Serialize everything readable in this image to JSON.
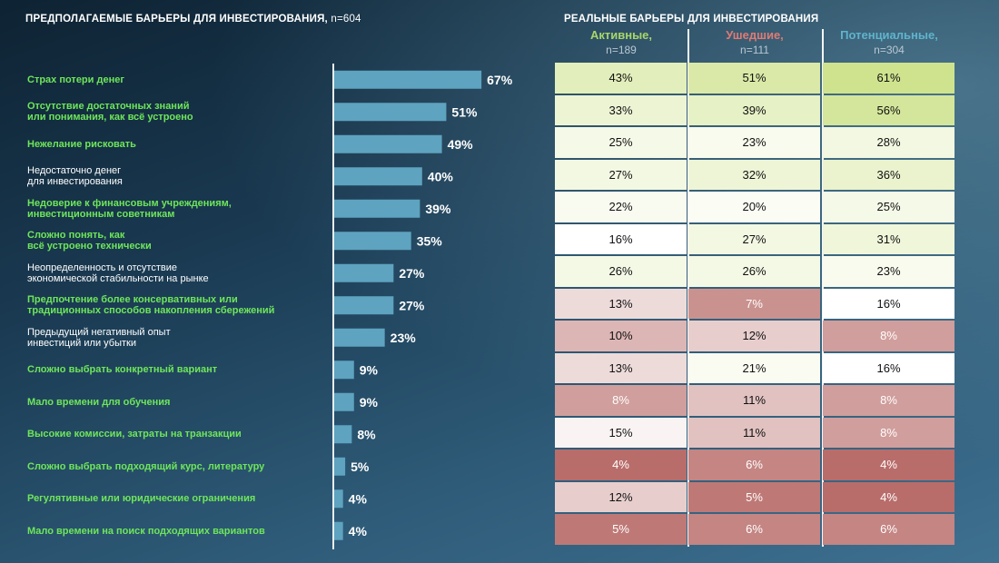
{
  "left_title": {
    "text": "ПРЕДПОЛАГАЕМЫЕ БАРЬЕРЫ ДЛЯ ИНВЕСТИРОВАНИЯ,",
    "n": " n=604"
  },
  "right_title": "РЕАЛЬНЫЕ БАРЬЕРЫ ДЛЯ ИНВЕСТИРОВАНИЯ",
  "columns": [
    {
      "name": "Активные,",
      "n": "n=189",
      "color": "#a8d66a"
    },
    {
      "name": "Ушедшие,",
      "n": "n=111",
      "color": "#e07a74"
    },
    {
      "name": "Потенциальные,",
      "n": "n=304",
      "color": "#5fb4cc"
    }
  ],
  "colors": {
    "bar": "#5ea3bf",
    "highlight_label": "#6ee65a",
    "low": "#b86d6a",
    "mid": "#ffffff",
    "high": "#cfe38e"
  },
  "rows": [
    {
      "label": "Страх потери денег",
      "highlight": true
    },
    {
      "label": "Отсутствие достаточных знаний\nили понимания, как всё устроено",
      "highlight": true
    },
    {
      "label": "Нежелание рисковать",
      "highlight": true
    },
    {
      "label": "Недостаточно денег\nдля инвестирования",
      "highlight": false
    },
    {
      "label": "Недоверие к финансовым учреждениям,\nинвестиционным советникам",
      "highlight": true
    },
    {
      "label": "Сложно понять, как\nвсё устроено технически",
      "highlight": true
    },
    {
      "label": "Неопределенность и отсутствие\nэкономической стабильности на рынке",
      "highlight": false
    },
    {
      "label": "Предпочтение более консервативных или\nтрадиционных способов накопления сбережений",
      "highlight": true
    },
    {
      "label": "Предыдущий негативный опыт\nинвестиций или убытки",
      "highlight": false
    },
    {
      "label": "Сложно выбрать конкретный вариант",
      "highlight": true
    },
    {
      "label": "Мало времени для обучения",
      "highlight": true
    },
    {
      "label": "Высокие комиссии, затраты на транзакции",
      "highlight": true
    },
    {
      "label": "Сложно выбрать подходящий курс, литературу",
      "highlight": true
    },
    {
      "label": "Регулятивные или юридические ограничения",
      "highlight": true
    },
    {
      "label": "Мало времени на поиск подходящих вариантов",
      "highlight": true
    }
  ],
  "chart_data": {
    "type": "bar",
    "orientation": "horizontal",
    "unit": "%",
    "categories": [
      "Страх потери денег",
      "Отсутствие достаточных знаний или понимания, как всё устроено",
      "Нежелание рисковать",
      "Недостаточно денег для инвестирования",
      "Недоверие к финансовым учреждениям, инвестиционным советникам",
      "Сложно понять, как всё устроено технически",
      "Неопределенность и отсутствие экономической стабильности на рынке",
      "Предпочтение более консервативных или традиционных способов накопления сбережений",
      "Предыдущий негативный опыт инвестиций или убытки",
      "Сложно выбрать конкретный вариант",
      "Мало времени для обучения",
      "Высокие комиссии, затраты на транзакции",
      "Сложно выбрать подходящий курс, литературу",
      "Регулятивные или юридические ограничения",
      "Мало времени на поиск подходящих вариантов"
    ],
    "values": [
      67,
      51,
      49,
      40,
      39,
      35,
      27,
      27,
      23,
      9,
      9,
      8,
      5,
      4,
      4
    ],
    "table": {
      "type": "table",
      "columns": [
        "Активные, n=189",
        "Ушедшие, n=111",
        "Потенциальные, n=304"
      ],
      "values": [
        [
          43,
          51,
          61
        ],
        [
          33,
          39,
          56
        ],
        [
          25,
          23,
          28
        ],
        [
          27,
          32,
          36
        ],
        [
          22,
          20,
          25
        ],
        [
          16,
          27,
          31
        ],
        [
          26,
          26,
          23
        ],
        [
          13,
          7,
          16
        ],
        [
          10,
          12,
          8
        ],
        [
          13,
          21,
          16
        ],
        [
          8,
          11,
          8
        ],
        [
          15,
          11,
          8
        ],
        [
          4,
          6,
          4
        ],
        [
          12,
          5,
          4
        ],
        [
          5,
          6,
          6
        ]
      ]
    }
  }
}
